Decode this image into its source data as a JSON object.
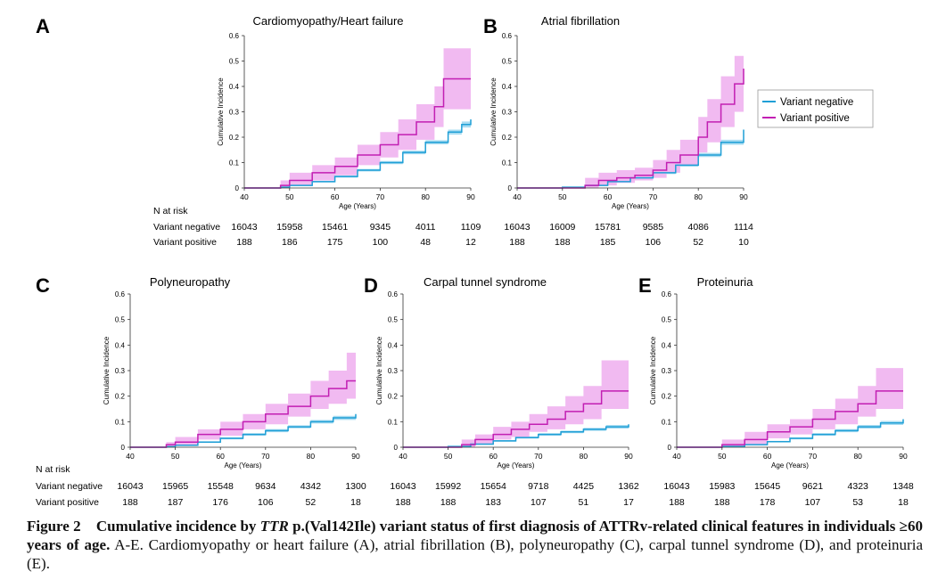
{
  "figure": {
    "label": "Figure 2",
    "caption_bold_1": "Cumulative incidence by ",
    "caption_bold_italic": "TTR",
    "caption_bold_2": " p.(Val142Ile) variant status of first diagnosis of ATTRv-related clinical features in individuals ≥60 years of age.",
    "caption_rest": " A-E. Cardiomyopathy or heart failure (A), atrial fibrillation (B), polyneuropathy (C), carpal tunnel syndrome (D), and proteinuria (E)."
  },
  "legend": {
    "entries": [
      "Variant negative",
      "Variant positive"
    ],
    "colors": {
      "negative": "#1f9fd6",
      "positive": "#c21fb3",
      "ci_negative": "#a9dcf1",
      "ci_positive": "#f0b2ef"
    }
  },
  "common": {
    "xlabel": "Age (Years)",
    "ylabel": "Cumulative Incidence",
    "xlim": [
      40,
      90
    ],
    "ylim": [
      0,
      0.6
    ],
    "xticks": [
      "40",
      "50",
      "60",
      "70",
      "80",
      "90"
    ],
    "yticks": [
      "0",
      "0.1",
      "0.2",
      "0.3",
      "0.4",
      "0.5",
      "0.6"
    ],
    "risk_header": "N at risk",
    "risk_row_labels": [
      "Variant negative",
      "Variant positive"
    ]
  },
  "chart_data": [
    {
      "panel": "A",
      "type": "line",
      "title": "Cardiomyopathy/Heart failure",
      "xlabel": "Age (Years)",
      "ylabel": "Cumulative Incidence",
      "xlim": [
        40,
        90
      ],
      "ylim": [
        0,
        0.6
      ],
      "series": [
        {
          "name": "Variant negative",
          "x": [
            40,
            48,
            50,
            55,
            60,
            65,
            70,
            75,
            80,
            85,
            88,
            90
          ],
          "y": [
            0,
            0.003,
            0.01,
            0.025,
            0.045,
            0.07,
            0.1,
            0.14,
            0.18,
            0.22,
            0.25,
            0.27
          ],
          "ci_low": [
            0,
            0.002,
            0.008,
            0.022,
            0.041,
            0.065,
            0.094,
            0.133,
            0.172,
            0.21,
            0.238,
            0.255
          ],
          "ci_high": [
            0,
            0.004,
            0.012,
            0.028,
            0.049,
            0.075,
            0.106,
            0.147,
            0.188,
            0.23,
            0.262,
            0.285
          ]
        },
        {
          "name": "Variant positive",
          "x": [
            40,
            48,
            50,
            55,
            60,
            65,
            70,
            74,
            78,
            82,
            84,
            90
          ],
          "y": [
            0,
            0.01,
            0.03,
            0.06,
            0.085,
            0.13,
            0.17,
            0.21,
            0.26,
            0.32,
            0.43,
            0.43
          ],
          "ci_low": [
            0,
            0,
            0.01,
            0.03,
            0.05,
            0.09,
            0.12,
            0.15,
            0.19,
            0.24,
            0.31,
            0.31
          ],
          "ci_high": [
            0,
            0.03,
            0.06,
            0.09,
            0.12,
            0.17,
            0.22,
            0.27,
            0.33,
            0.4,
            0.55,
            0.55
          ]
        }
      ],
      "at_risk": {
        "ages": [
          "40",
          "50",
          "60",
          "70",
          "80",
          "90"
        ],
        "negative": [
          "16043",
          "15958",
          "15461",
          "9345",
          "4011",
          "1109"
        ],
        "positive": [
          "188",
          "186",
          "175",
          "100",
          "48",
          "12"
        ]
      }
    },
    {
      "panel": "B",
      "type": "line",
      "title": "Atrial fibrillation",
      "xlabel": "Age (Years)",
      "ylabel": "Cumulative Incidence",
      "xlim": [
        40,
        90
      ],
      "ylim": [
        0,
        0.6
      ],
      "series": [
        {
          "name": "Variant negative",
          "x": [
            40,
            50,
            55,
            60,
            65,
            70,
            75,
            80,
            85,
            90
          ],
          "y": [
            0,
            0.003,
            0.01,
            0.025,
            0.04,
            0.06,
            0.09,
            0.13,
            0.18,
            0.23
          ],
          "ci_low": [
            0,
            0.002,
            0.008,
            0.022,
            0.036,
            0.055,
            0.084,
            0.122,
            0.17,
            0.215
          ],
          "ci_high": [
            0,
            0.004,
            0.012,
            0.028,
            0.044,
            0.065,
            0.096,
            0.138,
            0.19,
            0.245
          ]
        },
        {
          "name": "Variant positive",
          "x": [
            40,
            55,
            58,
            62,
            66,
            70,
            73,
            76,
            80,
            82,
            85,
            88,
            90
          ],
          "y": [
            0,
            0.01,
            0.03,
            0.04,
            0.05,
            0.07,
            0.1,
            0.13,
            0.2,
            0.26,
            0.33,
            0.41,
            0.47
          ],
          "ci_low": [
            0,
            0,
            0.01,
            0.02,
            0.03,
            0.04,
            0.06,
            0.09,
            0.14,
            0.18,
            0.24,
            0.3,
            0.34
          ],
          "ci_high": [
            0,
            0.04,
            0.06,
            0.07,
            0.08,
            0.11,
            0.15,
            0.19,
            0.28,
            0.35,
            0.44,
            0.52,
            0.56
          ]
        }
      ],
      "at_risk": {
        "ages": [
          "40",
          "50",
          "60",
          "70",
          "80",
          "90"
        ],
        "negative": [
          "16043",
          "16009",
          "15781",
          "9585",
          "4086",
          "1114"
        ],
        "positive": [
          "188",
          "188",
          "185",
          "106",
          "52",
          "10"
        ]
      }
    },
    {
      "panel": "C",
      "type": "line",
      "title": "Polyneuropathy",
      "xlabel": "Age (Years)",
      "ylabel": "Cumulative Incidence",
      "xlim": [
        40,
        90
      ],
      "ylim": [
        0,
        0.6
      ],
      "series": [
        {
          "name": "Variant negative",
          "x": [
            40,
            48,
            50,
            55,
            60,
            65,
            70,
            75,
            80,
            85,
            90
          ],
          "y": [
            0,
            0.002,
            0.008,
            0.02,
            0.035,
            0.05,
            0.065,
            0.08,
            0.1,
            0.115,
            0.13
          ],
          "ci_low": [
            0,
            0.001,
            0.006,
            0.017,
            0.031,
            0.045,
            0.059,
            0.074,
            0.093,
            0.107,
            0.12
          ],
          "ci_high": [
            0,
            0.003,
            0.01,
            0.023,
            0.039,
            0.055,
            0.071,
            0.086,
            0.107,
            0.123,
            0.14
          ]
        },
        {
          "name": "Variant positive",
          "x": [
            40,
            48,
            50,
            55,
            60,
            65,
            70,
            75,
            80,
            84,
            88,
            90
          ],
          "y": [
            0,
            0.01,
            0.02,
            0.05,
            0.07,
            0.1,
            0.13,
            0.16,
            0.2,
            0.23,
            0.26,
            0.26
          ],
          "ci_low": [
            0,
            0,
            0.005,
            0.03,
            0.045,
            0.07,
            0.09,
            0.12,
            0.15,
            0.17,
            0.19,
            0.19
          ],
          "ci_high": [
            0,
            0.02,
            0.04,
            0.07,
            0.1,
            0.13,
            0.17,
            0.21,
            0.26,
            0.3,
            0.37,
            0.37
          ]
        }
      ],
      "at_risk": {
        "ages": [
          "40",
          "50",
          "60",
          "70",
          "80",
          "90"
        ],
        "negative": [
          "16043",
          "15965",
          "15548",
          "9634",
          "4342",
          "1300"
        ],
        "positive": [
          "188",
          "187",
          "176",
          "106",
          "52",
          "18"
        ]
      }
    },
    {
      "panel": "D",
      "type": "line",
      "title": "Carpal tunnel syndrome",
      "xlabel": "Age (Years)",
      "ylabel": "Cumulative Incidence",
      "xlim": [
        40,
        90
      ],
      "ylim": [
        0,
        0.6
      ],
      "series": [
        {
          "name": "Variant negative",
          "x": [
            40,
            50,
            55,
            60,
            65,
            70,
            75,
            80,
            85,
            90
          ],
          "y": [
            0,
            0.003,
            0.012,
            0.025,
            0.038,
            0.05,
            0.06,
            0.07,
            0.08,
            0.09
          ],
          "ci_low": [
            0,
            0.002,
            0.01,
            0.022,
            0.034,
            0.045,
            0.055,
            0.064,
            0.073,
            0.082
          ],
          "ci_high": [
            0,
            0.004,
            0.014,
            0.028,
            0.042,
            0.055,
            0.065,
            0.076,
            0.087,
            0.098
          ]
        },
        {
          "name": "Variant positive",
          "x": [
            40,
            53,
            56,
            60,
            64,
            68,
            72,
            76,
            80,
            84,
            90
          ],
          "y": [
            0,
            0.01,
            0.03,
            0.05,
            0.07,
            0.09,
            0.11,
            0.14,
            0.17,
            0.22,
            0.22
          ],
          "ci_low": [
            0,
            0,
            0.01,
            0.03,
            0.04,
            0.06,
            0.07,
            0.09,
            0.11,
            0.15,
            0.15
          ],
          "ci_high": [
            0,
            0.03,
            0.05,
            0.08,
            0.1,
            0.13,
            0.16,
            0.2,
            0.24,
            0.34,
            0.34
          ]
        }
      ],
      "at_risk": {
        "ages": [
          "40",
          "50",
          "60",
          "70",
          "80",
          "90"
        ],
        "negative": [
          "16043",
          "15992",
          "15654",
          "9718",
          "4425",
          "1362"
        ],
        "positive": [
          "188",
          "188",
          "183",
          "107",
          "51",
          "17"
        ]
      }
    },
    {
      "panel": "E",
      "type": "line",
      "title": "Proteinuria",
      "xlabel": "Age (Years)",
      "ylabel": "Cumulative Incidence",
      "xlim": [
        40,
        90
      ],
      "ylim": [
        0,
        0.6
      ],
      "series": [
        {
          "name": "Variant negative",
          "x": [
            40,
            50,
            55,
            60,
            65,
            70,
            75,
            80,
            85,
            90
          ],
          "y": [
            0,
            0.003,
            0.01,
            0.022,
            0.035,
            0.05,
            0.065,
            0.08,
            0.095,
            0.11
          ],
          "ci_low": [
            0,
            0.002,
            0.008,
            0.019,
            0.031,
            0.045,
            0.059,
            0.073,
            0.087,
            0.1
          ],
          "ci_high": [
            0,
            0.004,
            0.012,
            0.025,
            0.039,
            0.055,
            0.071,
            0.087,
            0.103,
            0.12
          ]
        },
        {
          "name": "Variant positive",
          "x": [
            40,
            50,
            55,
            60,
            65,
            70,
            75,
            80,
            84,
            90
          ],
          "y": [
            0,
            0.01,
            0.03,
            0.06,
            0.08,
            0.11,
            0.14,
            0.17,
            0.22,
            0.22
          ],
          "ci_low": [
            0,
            0,
            0.01,
            0.035,
            0.05,
            0.07,
            0.09,
            0.12,
            0.15,
            0.15
          ],
          "ci_high": [
            0,
            0.03,
            0.06,
            0.09,
            0.11,
            0.15,
            0.19,
            0.24,
            0.31,
            0.31
          ]
        }
      ],
      "at_risk": {
        "ages": [
          "40",
          "50",
          "60",
          "70",
          "80",
          "90"
        ],
        "negative": [
          "16043",
          "15983",
          "15645",
          "9621",
          "4323",
          "1348"
        ],
        "positive": [
          "188",
          "188",
          "178",
          "107",
          "53",
          "18"
        ]
      }
    }
  ]
}
